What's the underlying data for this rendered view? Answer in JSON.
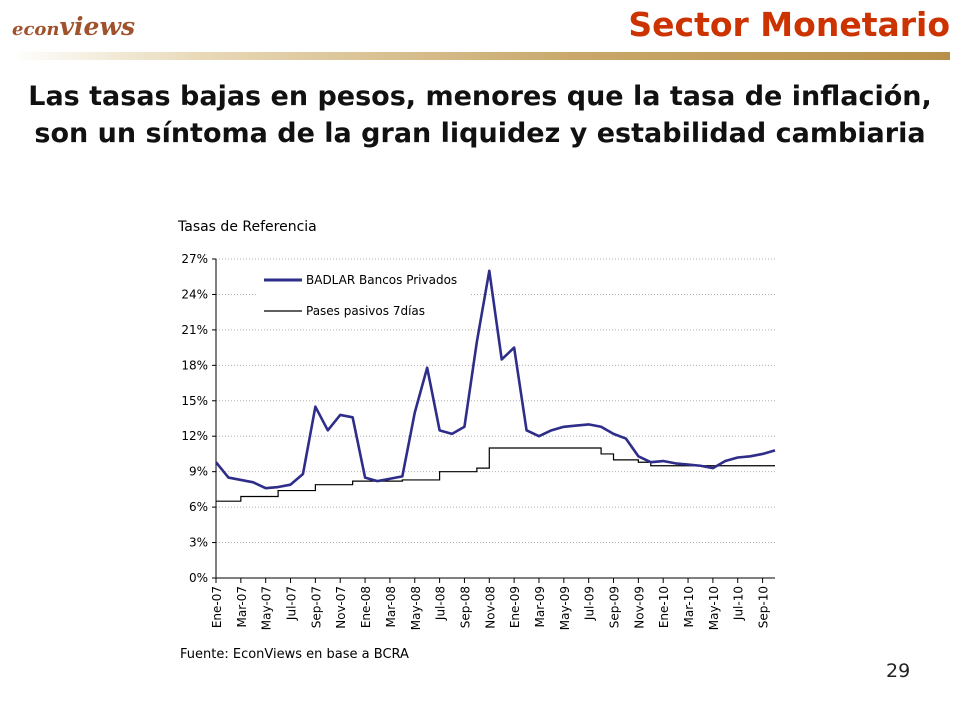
{
  "logo": {
    "part1": "econ",
    "part2": "views"
  },
  "section_title": "Sector Monetario",
  "headline": {
    "line1": "Las tasas bajas en pesos, menores que la tasa de inflación,",
    "line2": "son un síntoma de la gran liquidez y estabilidad cambiaria"
  },
  "source": "Fuente: EconViews en base a BCRA",
  "page_number": "29",
  "colors": {
    "accent": "#cc3300",
    "series1": "#2e2e8a",
    "series2": "#000000"
  },
  "chart_data": {
    "type": "line",
    "title": "Tasas de Referencia",
    "xlabel": "",
    "ylabel": "",
    "ylim": [
      0,
      27
    ],
    "yticks": [
      0,
      3,
      6,
      9,
      12,
      15,
      18,
      21,
      24,
      27
    ],
    "ytick_labels": [
      "0%",
      "3%",
      "6%",
      "9%",
      "12%",
      "15%",
      "18%",
      "21%",
      "24%",
      "27%"
    ],
    "xlim": [
      "2007-01",
      "2010-10"
    ],
    "xtick_labels": [
      "Ene-07",
      "Mar-07",
      "May-07",
      "Jul-07",
      "Sep-07",
      "Nov-07",
      "Ene-08",
      "Mar-08",
      "May-08",
      "Jul-08",
      "Sep-08",
      "Nov-08",
      "Ene-09",
      "Mar-09",
      "May-09",
      "Jul-09",
      "Sep-09",
      "Nov-09",
      "Ene-10",
      "Mar-10",
      "May-10",
      "Jul-10",
      "Sep-10"
    ],
    "grid": true,
    "legend_position": "top-left",
    "series": [
      {
        "name": "BADLAR Bancos Privados",
        "x": [
          "2007-01",
          "2007-02",
          "2007-03",
          "2007-04",
          "2007-05",
          "2007-06",
          "2007-07",
          "2007-08",
          "2007-09",
          "2007-10",
          "2007-11",
          "2007-12",
          "2008-01",
          "2008-02",
          "2008-03",
          "2008-04",
          "2008-05",
          "2008-06",
          "2008-07",
          "2008-08",
          "2008-09",
          "2008-10",
          "2008-11",
          "2008-12",
          "2009-01",
          "2009-02",
          "2009-03",
          "2009-04",
          "2009-05",
          "2009-06",
          "2009-07",
          "2009-08",
          "2009-09",
          "2009-10",
          "2009-11",
          "2009-12",
          "2010-01",
          "2010-02",
          "2010-03",
          "2010-04",
          "2010-05",
          "2010-06",
          "2010-07",
          "2010-08",
          "2010-09",
          "2010-10"
        ],
        "values": [
          9.8,
          8.5,
          8.3,
          8.1,
          7.6,
          7.7,
          7.9,
          8.8,
          14.5,
          12.5,
          13.8,
          13.6,
          8.5,
          8.2,
          8.4,
          8.6,
          14.0,
          17.8,
          12.5,
          12.2,
          12.8,
          20.0,
          26.0,
          18.5,
          19.5,
          12.5,
          12.0,
          12.5,
          12.8,
          12.9,
          13.0,
          12.8,
          12.2,
          11.8,
          10.3,
          9.8,
          9.9,
          9.7,
          9.6,
          9.5,
          9.3,
          9.9,
          10.2,
          10.3,
          10.5,
          10.8
        ]
      },
      {
        "name": "Pases pasivos 7días",
        "x": [
          "2007-01",
          "2007-03",
          "2007-06",
          "2007-09",
          "2007-12",
          "2008-04",
          "2008-07",
          "2008-10",
          "2008-11",
          "2009-04",
          "2009-07",
          "2009-08",
          "2009-09",
          "2009-10",
          "2009-11",
          "2009-12",
          "2010-01",
          "2010-10"
        ],
        "values": [
          6.5,
          6.9,
          7.4,
          7.9,
          8.2,
          8.3,
          9.0,
          9.3,
          11.0,
          11.0,
          11.0,
          10.5,
          10.0,
          10.0,
          9.8,
          9.5,
          9.5,
          9.5
        ]
      }
    ]
  }
}
